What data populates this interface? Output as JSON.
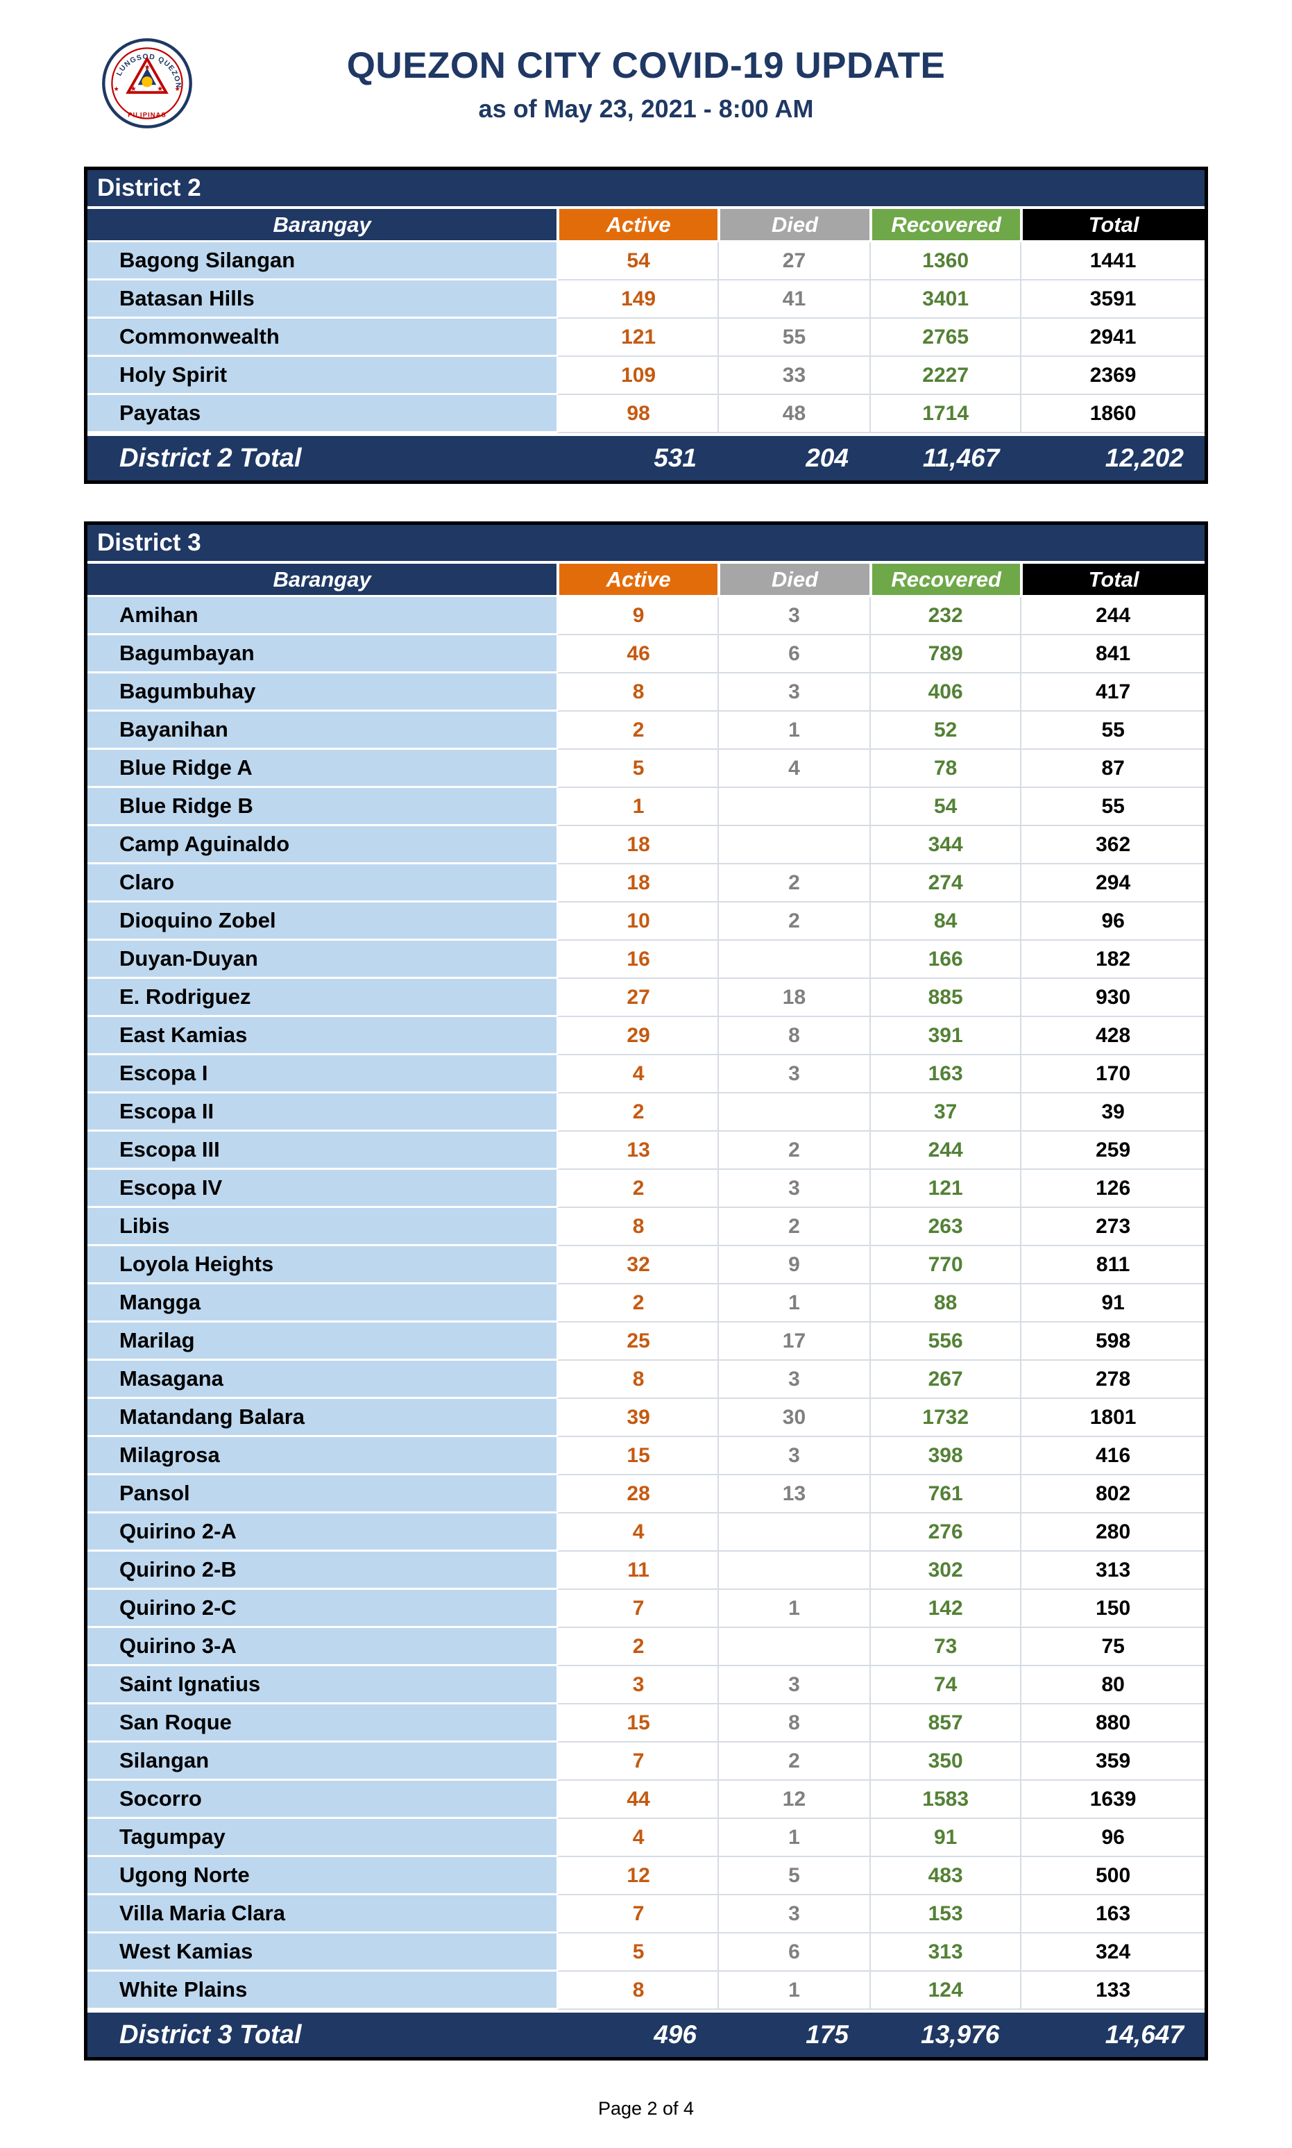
{
  "page": {
    "title": "QUEZON CITY COVID-19 UPDATE",
    "subtitle": "as of May 23, 2021 - 8:00 AM",
    "footer": "Page 2 of 4"
  },
  "columns": [
    "Barangay",
    "Active",
    "Died",
    "Recovered",
    "Total"
  ],
  "colors": {
    "navy": "#1F3864",
    "orange": "#E36C0A",
    "gray": "#A6A6A6",
    "green": "#6EA849",
    "rowBlue": "#BDD7EE",
    "grid": "#D6DCE4",
    "activeText": "#C55A11",
    "diedText": "#808080",
    "recoveredText": "#538135",
    "totalText": "#000000"
  },
  "tables": [
    {
      "district": "District 2",
      "rows": [
        {
          "barangay": "Bagong Silangan",
          "active": "54",
          "died": "27",
          "recovered": "1360",
          "total": "1441"
        },
        {
          "barangay": "Batasan Hills",
          "active": "149",
          "died": "41",
          "recovered": "3401",
          "total": "3591"
        },
        {
          "barangay": "Commonwealth",
          "active": "121",
          "died": "55",
          "recovered": "2765",
          "total": "2941"
        },
        {
          "barangay": "Holy Spirit",
          "active": "109",
          "died": "33",
          "recovered": "2227",
          "total": "2369"
        },
        {
          "barangay": "Payatas",
          "active": "98",
          "died": "48",
          "recovered": "1714",
          "total": "1860"
        }
      ],
      "total": {
        "label": "District 2 Total",
        "active": "531",
        "died": "204",
        "recovered": "11,467",
        "total": "12,202"
      }
    },
    {
      "district": "District 3",
      "rows": [
        {
          "barangay": "Amihan",
          "active": "9",
          "died": "3",
          "recovered": "232",
          "total": "244"
        },
        {
          "barangay": "Bagumbayan",
          "active": "46",
          "died": "6",
          "recovered": "789",
          "total": "841"
        },
        {
          "barangay": "Bagumbuhay",
          "active": "8",
          "died": "3",
          "recovered": "406",
          "total": "417"
        },
        {
          "barangay": "Bayanihan",
          "active": "2",
          "died": "1",
          "recovered": "52",
          "total": "55"
        },
        {
          "barangay": "Blue Ridge A",
          "active": "5",
          "died": "4",
          "recovered": "78",
          "total": "87"
        },
        {
          "barangay": "Blue Ridge B",
          "active": "1",
          "died": "",
          "recovered": "54",
          "total": "55"
        },
        {
          "barangay": "Camp Aguinaldo",
          "active": "18",
          "died": "",
          "recovered": "344",
          "total": "362"
        },
        {
          "barangay": "Claro",
          "active": "18",
          "died": "2",
          "recovered": "274",
          "total": "294"
        },
        {
          "barangay": "Dioquino Zobel",
          "active": "10",
          "died": "2",
          "recovered": "84",
          "total": "96"
        },
        {
          "barangay": "Duyan-Duyan",
          "active": "16",
          "died": "",
          "recovered": "166",
          "total": "182"
        },
        {
          "barangay": "E. Rodriguez",
          "active": "27",
          "died": "18",
          "recovered": "885",
          "total": "930"
        },
        {
          "barangay": "East Kamias",
          "active": "29",
          "died": "8",
          "recovered": "391",
          "total": "428"
        },
        {
          "barangay": "Escopa I",
          "active": "4",
          "died": "3",
          "recovered": "163",
          "total": "170"
        },
        {
          "barangay": "Escopa II",
          "active": "2",
          "died": "",
          "recovered": "37",
          "total": "39"
        },
        {
          "barangay": "Escopa III",
          "active": "13",
          "died": "2",
          "recovered": "244",
          "total": "259"
        },
        {
          "barangay": "Escopa IV",
          "active": "2",
          "died": "3",
          "recovered": "121",
          "total": "126"
        },
        {
          "barangay": "Libis",
          "active": "8",
          "died": "2",
          "recovered": "263",
          "total": "273"
        },
        {
          "barangay": "Loyola Heights",
          "active": "32",
          "died": "9",
          "recovered": "770",
          "total": "811"
        },
        {
          "barangay": "Mangga",
          "active": "2",
          "died": "1",
          "recovered": "88",
          "total": "91"
        },
        {
          "barangay": "Marilag",
          "active": "25",
          "died": "17",
          "recovered": "556",
          "total": "598"
        },
        {
          "barangay": "Masagana",
          "active": "8",
          "died": "3",
          "recovered": "267",
          "total": "278"
        },
        {
          "barangay": "Matandang Balara",
          "active": "39",
          "died": "30",
          "recovered": "1732",
          "total": "1801"
        },
        {
          "barangay": "Milagrosa",
          "active": "15",
          "died": "3",
          "recovered": "398",
          "total": "416"
        },
        {
          "barangay": "Pansol",
          "active": "28",
          "died": "13",
          "recovered": "761",
          "total": "802"
        },
        {
          "barangay": "Quirino 2-A",
          "active": "4",
          "died": "",
          "recovered": "276",
          "total": "280"
        },
        {
          "barangay": "Quirino 2-B",
          "active": "11",
          "died": "",
          "recovered": "302",
          "total": "313"
        },
        {
          "barangay": "Quirino 2-C",
          "active": "7",
          "died": "1",
          "recovered": "142",
          "total": "150"
        },
        {
          "barangay": "Quirino 3-A",
          "active": "2",
          "died": "",
          "recovered": "73",
          "total": "75"
        },
        {
          "barangay": "Saint Ignatius",
          "active": "3",
          "died": "3",
          "recovered": "74",
          "total": "80"
        },
        {
          "barangay": "San Roque",
          "active": "15",
          "died": "8",
          "recovered": "857",
          "total": "880"
        },
        {
          "barangay": "Silangan",
          "active": "7",
          "died": "2",
          "recovered": "350",
          "total": "359"
        },
        {
          "barangay": "Socorro",
          "active": "44",
          "died": "12",
          "recovered": "1583",
          "total": "1639"
        },
        {
          "barangay": "Tagumpay",
          "active": "4",
          "died": "1",
          "recovered": "91",
          "total": "96"
        },
        {
          "barangay": "Ugong Norte",
          "active": "12",
          "died": "5",
          "recovered": "483",
          "total": "500"
        },
        {
          "barangay": "Villa Maria Clara",
          "active": "7",
          "died": "3",
          "recovered": "153",
          "total": "163"
        },
        {
          "barangay": "West Kamias",
          "active": "5",
          "died": "6",
          "recovered": "313",
          "total": "324"
        },
        {
          "barangay": "White Plains",
          "active": "8",
          "died": "1",
          "recovered": "124",
          "total": "133"
        }
      ],
      "total": {
        "label": "District 3 Total",
        "active": "496",
        "died": "175",
        "recovered": "13,976",
        "total": "14,647"
      }
    }
  ]
}
